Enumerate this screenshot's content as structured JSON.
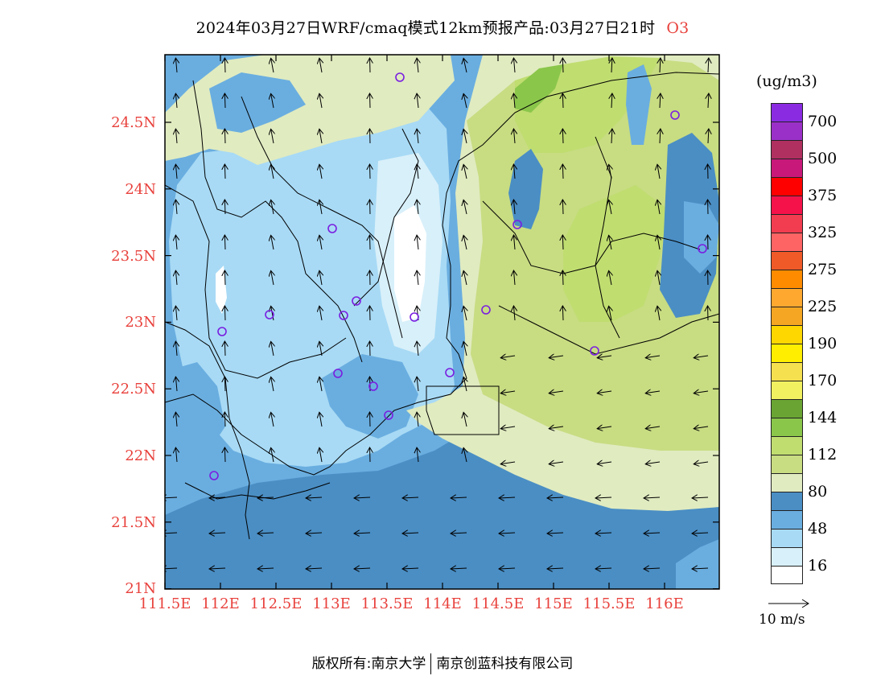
{
  "title": {
    "text": "2024年03月27日WRF/cmaq模式12km预报产品:03月27日21时",
    "pollutant": "O3"
  },
  "axes": {
    "lat_labels": [
      "24.5N",
      "24N",
      "23.5N",
      "23N",
      "22.5N",
      "22N",
      "21.5N",
      "21N"
    ],
    "lon_labels": [
      "111.5E",
      "112E",
      "112.5E",
      "113E",
      "113.5E",
      "114E",
      "114.5E",
      "115E",
      "115.5E",
      "116E"
    ]
  },
  "legend": {
    "unit": "(ug/m3)",
    "levels": [
      {
        "color": "#8a2be2",
        "label": "700"
      },
      {
        "color": "#9b30c8",
        "label": ""
      },
      {
        "color": "#b03060",
        "label": "500"
      },
      {
        "color": "#c8187a",
        "label": ""
      },
      {
        "color": "#ff0000",
        "label": "375"
      },
      {
        "color": "#f5124a",
        "label": ""
      },
      {
        "color": "#f23c50",
        "label": "325"
      },
      {
        "color": "#ff6464",
        "label": ""
      },
      {
        "color": "#f05a28",
        "label": "275"
      },
      {
        "color": "#ff8c00",
        "label": ""
      },
      {
        "color": "#ffa830",
        "label": "225"
      },
      {
        "color": "#f5a623",
        "label": ""
      },
      {
        "color": "#ffd700",
        "label": "190"
      },
      {
        "color": "#ffee00",
        "label": ""
      },
      {
        "color": "#f5e050",
        "label": "170"
      },
      {
        "color": "#f0f060",
        "label": ""
      },
      {
        "color": "#6aa533",
        "label": "144"
      },
      {
        "color": "#8ac64a",
        "label": ""
      },
      {
        "color": "#c0dd70",
        "label": "112"
      },
      {
        "color": "#c8dc82",
        "label": ""
      },
      {
        "color": "#e0ebc0",
        "label": "80"
      },
      {
        "color": "#4a8ec4",
        "label": ""
      },
      {
        "color": "#6aaee0",
        "label": "48"
      },
      {
        "color": "#a8daf5",
        "label": ""
      },
      {
        "color": "#d8f0fa",
        "label": "16"
      },
      {
        "color": "#ffffff",
        "label": ""
      }
    ]
  },
  "vector_reference": {
    "label": "10 m/s"
  },
  "copyright": {
    "left": "版权所有:南京大学",
    "right": "南京创蓝科技有限公司"
  },
  "field_colors": {
    "sea": "#4a8ec4",
    "blue_mid": "#6aaee0",
    "blue_light": "#a8daf5",
    "blue_pale": "#d8f0fa",
    "white": "#ffffff",
    "yellow_green": "#e0ebc0",
    "green_light": "#c8dc82",
    "green": "#c0dd70",
    "green_dark": "#8ac64a",
    "station": "#7a1ee0"
  }
}
